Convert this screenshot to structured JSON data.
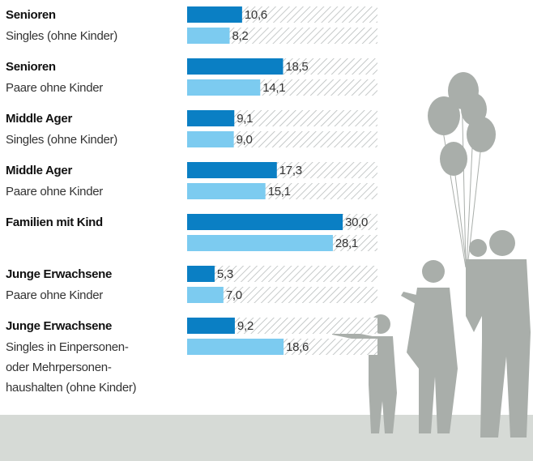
{
  "chart_data": {
    "type": "bar",
    "orientation": "horizontal",
    "categories": [
      "Senioren",
      "Senioren",
      "Middle Ager",
      "Middle Ager",
      "Familien mit Kind",
      "Junge Erwachsene",
      "Junge Erwachsene"
    ],
    "subtitles": [
      [
        "Singles (ohne Kinder)"
      ],
      [
        "Paare ohne Kinder"
      ],
      [
        "Singles (ohne Kinder)"
      ],
      [
        "Paare ohne Kinder"
      ],
      null,
      [
        "Paare ohne Kinder"
      ],
      [
        "Singles in Einpersonen-",
        "oder Mehrpersonen-",
        "haushalten (ohne Kinder)"
      ]
    ],
    "series": [
      {
        "color": "#0a7fc4",
        "values": [
          10.6,
          18.5,
          9.1,
          17.3,
          30.0,
          5.3,
          9.2
        ],
        "value_labels": [
          "10,6",
          "18,5",
          "9,1",
          "17,3",
          "30,0",
          "5,3",
          "9,2"
        ]
      },
      {
        "color": "#7ccbf0",
        "values": [
          8.2,
          14.1,
          9.0,
          15.1,
          28.1,
          7.0,
          18.6
        ],
        "value_labels": [
          "8,2",
          "14,1",
          "9,0",
          "15,1",
          "28,1",
          "7,0",
          "18,6"
        ]
      }
    ],
    "xlim": [
      0,
      36.7
    ]
  }
}
